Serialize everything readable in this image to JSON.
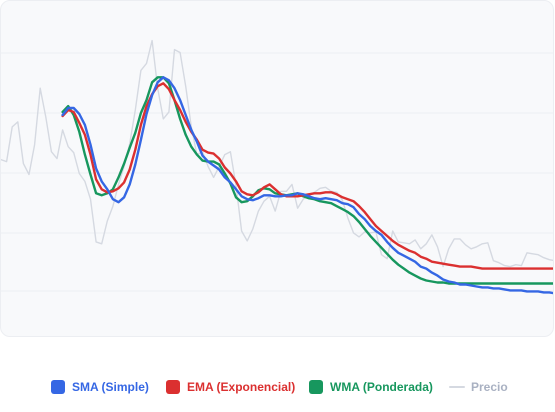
{
  "chart_data": {
    "type": "line",
    "title": "",
    "xlabel": "",
    "ylabel": "",
    "grid": true,
    "legend_position": "bottom",
    "x": [
      0,
      1,
      2,
      3,
      4,
      5,
      6,
      7,
      8,
      9,
      10,
      11,
      12,
      13,
      14,
      15,
      16,
      17,
      18,
      19,
      20,
      21,
      22,
      23,
      24,
      25,
      26,
      27,
      28,
      29,
      30,
      31,
      32,
      33,
      34,
      35,
      36,
      37,
      38,
      39,
      40,
      41,
      42,
      43,
      44,
      45,
      46,
      47,
      48,
      49,
      50,
      51,
      52,
      53,
      54,
      55,
      56,
      57,
      58,
      59,
      60,
      61,
      62,
      63,
      64,
      65,
      66,
      67,
      68,
      69,
      70,
      71,
      72,
      73,
      74,
      75,
      76,
      77,
      78,
      79,
      80,
      81,
      82,
      83,
      84,
      85,
      86,
      87,
      88,
      89,
      90,
      91,
      92,
      93,
      94,
      95,
      96,
      97,
      98,
      99
    ],
    "xlim": [
      0,
      99
    ],
    "ylim": [
      0,
      340
    ],
    "series": [
      {
        "name": "SMA (Simple)",
        "color": "#3567e4",
        "values": [
          null,
          null,
          null,
          null,
          null,
          null,
          null,
          null,
          null,
          null,
          null,
          225,
          232,
          232,
          226,
          215,
          195,
          171,
          158,
          150,
          140,
          137,
          142,
          155,
          175,
          200,
          226,
          245,
          258,
          263,
          260,
          252,
          240,
          225,
          210,
          198,
          184,
          178,
          174,
          170,
          162,
          157,
          150,
          143,
          140,
          139,
          141,
          144,
          144,
          143,
          143,
          144,
          144,
          146,
          145,
          143,
          141,
          140,
          141,
          140,
          139,
          136,
          135,
          132,
          125,
          120,
          113,
          108,
          104,
          97,
          91,
          86,
          83,
          80,
          77,
          72,
          70,
          66,
          63,
          59,
          57,
          56,
          54,
          54,
          53,
          52,
          51,
          51,
          50,
          50,
          49,
          48,
          48,
          48,
          47,
          47,
          47,
          46,
          46,
          45
        ]
      },
      {
        "name": "EMA (Exponencial)",
        "color": "#db3030",
        "values": [
          null,
          null,
          null,
          null,
          null,
          null,
          null,
          null,
          null,
          null,
          null,
          224,
          230,
          228,
          217,
          205,
          185,
          160,
          150,
          147,
          148,
          151,
          157,
          170,
          190,
          215,
          234,
          246,
          254,
          257,
          251,
          240,
          230,
          218,
          208,
          200,
          190,
          187,
          186,
          181,
          172,
          166,
          158,
          148,
          145,
          144,
          147,
          152,
          155,
          150,
          145,
          143,
          143,
          143,
          144,
          145,
          146,
          146,
          147,
          147,
          145,
          142,
          140,
          138,
          133,
          127,
          120,
          113,
          108,
          103,
          98,
          94,
          91,
          88,
          86,
          82,
          80,
          77,
          76,
          75,
          74,
          73,
          72,
          72,
          72,
          71,
          70,
          70,
          70,
          70,
          70,
          70,
          70,
          70,
          70,
          70,
          70,
          70,
          70,
          70
        ]
      },
      {
        "name": "WMA (Ponderada)",
        "color": "#17975e",
        "values": [
          null,
          null,
          null,
          null,
          null,
          null,
          null,
          null,
          null,
          null,
          null,
          228,
          234,
          225,
          208,
          185,
          165,
          146,
          144,
          146,
          150,
          162,
          176,
          192,
          207,
          227,
          240,
          258,
          263,
          263,
          257,
          240,
          221,
          205,
          193,
          185,
          179,
          178,
          178,
          175,
          166,
          156,
          142,
          137,
          138,
          143,
          149,
          151,
          150,
          146,
          145,
          144,
          145,
          146,
          143,
          141,
          140,
          138,
          137,
          136,
          133,
          130,
          127,
          123,
          117,
          110,
          103,
          97,
          91,
          85,
          79,
          74,
          70,
          66,
          63,
          60,
          58,
          57,
          56,
          56,
          55,
          55,
          55,
          55,
          55,
          55,
          55,
          55,
          55,
          55,
          55,
          55,
          55,
          55,
          55,
          55,
          55,
          55,
          55,
          55
        ]
      },
      {
        "name": "Precio",
        "color": "#d5d9e1",
        "values": [
          180,
          178,
          213,
          218,
          176,
          165,
          195,
          252,
          223,
          188,
          181,
          210,
          193,
          187,
          166,
          158,
          140,
          97,
          95,
          118,
          133,
          155,
          173,
          196,
          230,
          270,
          277,
          300,
          252,
          221,
          228,
          291,
          288,
          254,
          213,
          185,
          188,
          173,
          162,
          173,
          185,
          188,
          154,
          108,
          98,
          110,
          128,
          138,
          143,
          128,
          148,
          148,
          155,
          131,
          140,
          144,
          147,
          151,
          152,
          148,
          147,
          139,
          121,
          106,
          102,
          107,
          106,
          107,
          84,
          80,
          108,
          97,
          96,
          95,
          99,
          90,
          95,
          104,
          92,
          72,
          90,
          100,
          100,
          94,
          90,
          92,
          95,
          96,
          78,
          76,
          73,
          72,
          74,
          73,
          86,
          85,
          84,
          81,
          79,
          78
        ]
      }
    ]
  },
  "legend": {
    "sma": "SMA (Simple)",
    "ema": "EMA (Exponencial)",
    "wma": "WMA (Ponderada)",
    "price": "Precio"
  }
}
